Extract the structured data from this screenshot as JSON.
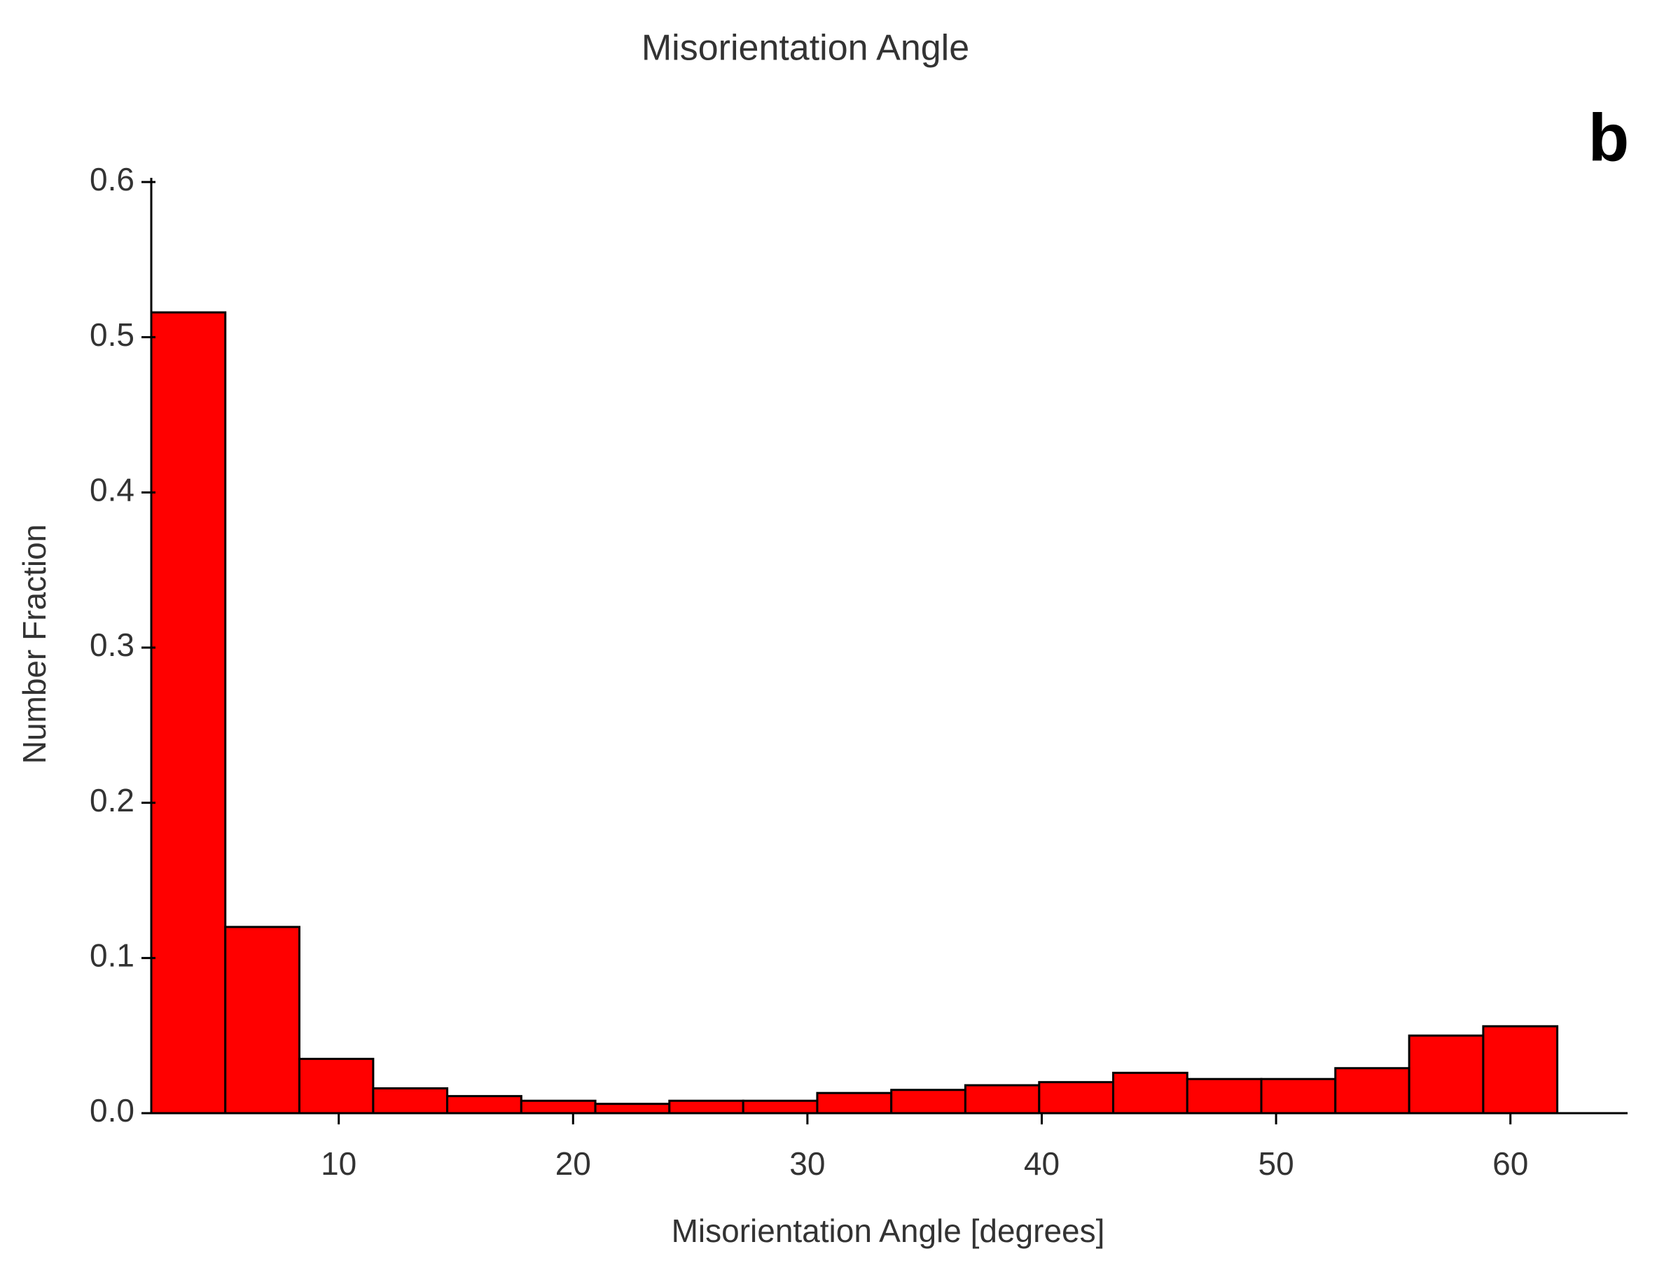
{
  "chart_data": {
    "type": "histogram",
    "title": "Misorientation Angle",
    "panel_label": "b",
    "x_label": "Misorientation Angle [degrees]",
    "y_label": "Number Fraction",
    "bins": [
      2,
      5.16,
      8.32,
      11.47,
      14.63,
      17.79,
      20.95,
      24.11,
      27.26,
      30.42,
      33.58,
      36.74,
      39.89,
      43.05,
      46.21,
      49.37,
      52.53,
      55.68,
      58.84,
      62
    ],
    "values": [
      0.516,
      0.12,
      0.035,
      0.016,
      0.011,
      0.008,
      0.006,
      0.008,
      0.008,
      0.013,
      0.015,
      0.018,
      0.02,
      0.026,
      0.022,
      0.022,
      0.029,
      0.05,
      0.056
    ],
    "color": "#ff0000",
    "xlim": [
      2,
      65
    ],
    "xticks": [
      10,
      20,
      30,
      40,
      50,
      60
    ],
    "ylim": [
      0,
      0.6
    ],
    "yticks": [
      {
        "value": 0,
        "label": "0.0"
      },
      0.1,
      0.2,
      0.3,
      0.4,
      0.5,
      0.6
    ]
  }
}
